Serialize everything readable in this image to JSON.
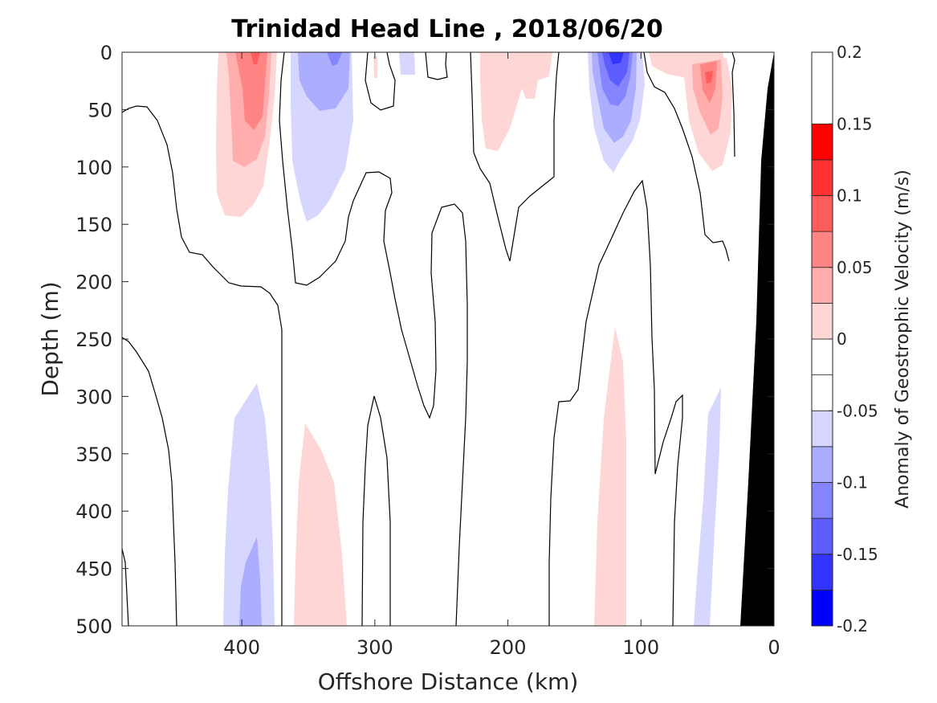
{
  "chart_data": {
    "type": "heatmap",
    "title": "Trinidad Head Line , 2018/06/20",
    "xlabel": "Offshore Distance (km)",
    "ylabel": "Depth (m)",
    "xlim": [
      490,
      0
    ],
    "ylim": [
      0,
      500
    ],
    "x_reversed": true,
    "y_reversed": true,
    "xticks": [
      400,
      300,
      200,
      100,
      0
    ],
    "yticks": [
      0,
      50,
      100,
      150,
      200,
      250,
      300,
      350,
      400,
      450,
      500
    ],
    "colorbar": {
      "label": "Anomaly of Geostrophic Velocity (m/s)",
      "range": [
        -0.2,
        0.2
      ],
      "ticks": [
        0.2,
        0.15,
        0.1,
        0.05,
        0,
        -0.05,
        -0.1,
        -0.15,
        -0.2
      ],
      "levels": [
        -0.2,
        -0.175,
        -0.15,
        -0.125,
        -0.1,
        -0.075,
        -0.05,
        -0.025,
        0,
        0.025,
        0.05,
        0.075,
        0.1,
        0.125,
        0.15,
        0.175,
        0.2
      ],
      "level_colors": [
        "#0000ff",
        "#3333ff",
        "#5c5cff",
        "#8585ff",
        "#adadff",
        "#d6d6ff",
        "#ffffff",
        "#ffffff",
        "#ffd6d6",
        "#ffadad",
        "#ff8585",
        "#ff5c5c",
        "#ff3333",
        "#ff0000"
      ]
    },
    "anomaly_features": [
      {
        "sign": "positive",
        "center_km": 390,
        "depth_range": [
          0,
          145
        ],
        "peak": 0.1
      },
      {
        "sign": "negative",
        "center_km": 340,
        "depth_range": [
          0,
          150
        ],
        "peak": -0.075
      },
      {
        "sign": "negative",
        "center_km": 275,
        "depth_range": [
          0,
          20
        ],
        "peak": -0.03
      },
      {
        "sign": "positive",
        "center_km": 190,
        "depth_range": [
          0,
          90
        ],
        "peak": 0.05
      },
      {
        "sign": "negative",
        "center_km": 120,
        "depth_range": [
          0,
          105
        ],
        "peak": -0.15
      },
      {
        "sign": "positive",
        "center_km": 55,
        "depth_range": [
          0,
          105
        ],
        "peak": 0.1
      },
      {
        "sign": "negative",
        "center_km": 390,
        "depth_range": [
          290,
          500
        ],
        "peak": -0.075
      },
      {
        "sign": "positive",
        "center_km": 340,
        "depth_range": [
          325,
          500
        ],
        "peak": 0.04
      },
      {
        "sign": "positive",
        "center_km": 120,
        "depth_range": [
          240,
          500
        ],
        "peak": 0.04
      },
      {
        "sign": "negative",
        "center_km": 50,
        "depth_range": [
          300,
          500
        ],
        "peak": -0.04
      }
    ],
    "bathymetry": {
      "color": "#000000"
    }
  }
}
